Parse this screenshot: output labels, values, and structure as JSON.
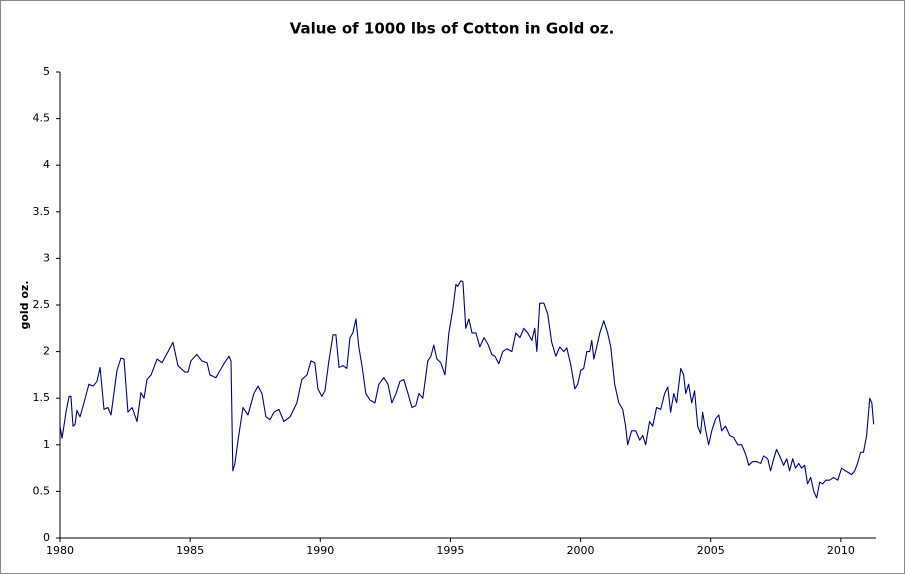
{
  "chart_data": {
    "type": "line",
    "title": "Value of 1000 lbs of Cotton in Gold oz.",
    "y_label": "gold oz.",
    "x": [
      1980.0,
      1980.08,
      1980.23,
      1980.35,
      1980.42,
      1980.5,
      1980.58,
      1980.65,
      1980.77,
      1980.92,
      1981.11,
      1981.27,
      1981.42,
      1981.54,
      1981.69,
      1981.84,
      1981.96,
      1982.07,
      1982.19,
      1982.34,
      1982.46,
      1982.61,
      1982.77,
      1982.96,
      1983.11,
      1983.23,
      1983.34,
      1983.5,
      1983.73,
      1983.92,
      1984.15,
      1984.34,
      1984.53,
      1984.8,
      1984.92,
      1985.03,
      1985.26,
      1985.45,
      1985.65,
      1985.76,
      1985.99,
      1986.11,
      1986.3,
      1986.49,
      1986.57,
      1986.64,
      1986.72,
      1986.84,
      1987.03,
      1987.22,
      1987.45,
      1987.61,
      1987.76,
      1987.91,
      1988.07,
      1988.22,
      1988.41,
      1988.6,
      1988.84,
      1989.1,
      1989.29,
      1989.49,
      1989.64,
      1989.79,
      1989.91,
      1990.06,
      1990.18,
      1990.33,
      1990.49,
      1990.6,
      1990.72,
      1990.87,
      1991.02,
      1991.14,
      1991.25,
      1991.37,
      1991.48,
      1991.6,
      1991.75,
      1991.91,
      1992.1,
      1992.25,
      1992.44,
      1992.6,
      1992.75,
      1992.91,
      1993.06,
      1993.21,
      1993.37,
      1993.52,
      1993.67,
      1993.79,
      1993.94,
      1994.13,
      1994.25,
      1994.36,
      1994.48,
      1994.63,
      1994.79,
      1994.94,
      1995.09,
      1995.21,
      1995.28,
      1995.4,
      1995.48,
      1995.59,
      1995.71,
      1995.83,
      1995.98,
      1996.13,
      1996.29,
      1996.44,
      1996.59,
      1996.71,
      1996.86,
      1997.01,
      1997.17,
      1997.36,
      1997.51,
      1997.67,
      1997.82,
      1997.97,
      1998.13,
      1998.24,
      1998.32,
      1998.43,
      1998.59,
      1998.74,
      1998.89,
      1999.05,
      1999.2,
      1999.36,
      1999.47,
      1999.63,
      1999.78,
      1999.89,
      2000.01,
      2000.12,
      2000.24,
      2000.35,
      2000.43,
      2000.51,
      2000.62,
      2000.74,
      2000.89,
      2001.04,
      2001.16,
      2001.31,
      2001.47,
      2001.62,
      2001.73,
      2001.81,
      2001.96,
      2002.12,
      2002.27,
      2002.39,
      2002.5,
      2002.65,
      2002.77,
      2002.92,
      2003.08,
      2003.23,
      2003.35,
      2003.46,
      2003.58,
      2003.69,
      2003.85,
      2003.96,
      2004.04,
      2004.15,
      2004.27,
      2004.38,
      2004.5,
      2004.61,
      2004.69,
      2004.81,
      2004.92,
      2005.04,
      2005.19,
      2005.31,
      2005.42,
      2005.57,
      2005.73,
      2005.88,
      2006.04,
      2006.19,
      2006.34,
      2006.46,
      2006.61,
      2006.77,
      2006.92,
      2007.03,
      2007.19,
      2007.3,
      2007.42,
      2007.53,
      2007.65,
      2007.8,
      2007.92,
      2008.03,
      2008.15,
      2008.26,
      2008.38,
      2008.49,
      2008.61,
      2008.72,
      2008.84,
      2008.96,
      2009.07,
      2009.19,
      2009.3,
      2009.42,
      2009.57,
      2009.72,
      2009.88,
      2010.03,
      2010.18,
      2010.3,
      2010.41,
      2010.53,
      2010.64,
      2010.76,
      2010.87,
      2010.99,
      2011.11,
      2011.19,
      2011.26
    ],
    "series": [
      {
        "name": "Cotton in gold oz.",
        "color": "#000080",
        "values": [
          1.2,
          1.07,
          1.35,
          1.52,
          1.52,
          1.2,
          1.22,
          1.37,
          1.3,
          1.45,
          1.65,
          1.63,
          1.68,
          1.83,
          1.38,
          1.4,
          1.32,
          1.55,
          1.8,
          1.93,
          1.92,
          1.35,
          1.4,
          1.25,
          1.56,
          1.5,
          1.7,
          1.75,
          1.92,
          1.88,
          2.0,
          2.1,
          1.85,
          1.78,
          1.78,
          1.9,
          1.97,
          1.9,
          1.88,
          1.75,
          1.72,
          1.78,
          1.87,
          1.95,
          1.9,
          0.72,
          0.8,
          1.05,
          1.4,
          1.32,
          1.55,
          1.63,
          1.55,
          1.3,
          1.27,
          1.35,
          1.38,
          1.25,
          1.3,
          1.45,
          1.7,
          1.75,
          1.9,
          1.88,
          1.6,
          1.52,
          1.58,
          1.9,
          2.18,
          2.18,
          1.83,
          1.85,
          1.82,
          2.15,
          2.2,
          2.35,
          2.05,
          1.85,
          1.55,
          1.48,
          1.45,
          1.65,
          1.72,
          1.65,
          1.45,
          1.55,
          1.68,
          1.7,
          1.55,
          1.4,
          1.42,
          1.55,
          1.5,
          1.9,
          1.95,
          2.07,
          1.92,
          1.88,
          1.75,
          2.2,
          2.45,
          2.72,
          2.7,
          2.76,
          2.75,
          2.25,
          2.35,
          2.2,
          2.2,
          2.05,
          2.15,
          2.08,
          1.97,
          1.95,
          1.87,
          2.0,
          2.03,
          2.0,
          2.2,
          2.15,
          2.25,
          2.2,
          2.12,
          2.25,
          2.0,
          2.52,
          2.52,
          2.4,
          2.1,
          1.95,
          2.05,
          2.0,
          2.04,
          1.85,
          1.6,
          1.65,
          1.8,
          1.82,
          2.0,
          2.0,
          2.12,
          1.92,
          2.05,
          2.2,
          2.33,
          2.2,
          2.05,
          1.65,
          1.45,
          1.38,
          1.2,
          1.0,
          1.15,
          1.15,
          1.05,
          1.1,
          1.0,
          1.25,
          1.2,
          1.4,
          1.38,
          1.55,
          1.62,
          1.35,
          1.55,
          1.45,
          1.82,
          1.75,
          1.55,
          1.65,
          1.45,
          1.58,
          1.2,
          1.12,
          1.35,
          1.15,
          1.0,
          1.15,
          1.28,
          1.32,
          1.15,
          1.2,
          1.1,
          1.08,
          1.0,
          1.0,
          0.9,
          0.78,
          0.82,
          0.82,
          0.8,
          0.88,
          0.85,
          0.72,
          0.85,
          0.95,
          0.88,
          0.78,
          0.85,
          0.72,
          0.85,
          0.75,
          0.8,
          0.75,
          0.78,
          0.58,
          0.65,
          0.5,
          0.43,
          0.6,
          0.58,
          0.62,
          0.62,
          0.65,
          0.62,
          0.75,
          0.72,
          0.7,
          0.68,
          0.72,
          0.8,
          0.92,
          0.92,
          1.1,
          1.5,
          1.45,
          1.22
        ]
      }
    ],
    "xlim": [
      1980,
      2011.35
    ],
    "xticks": [
      1980,
      1985,
      1990,
      1995,
      2000,
      2005,
      2010
    ],
    "ylim": [
      0,
      5
    ],
    "yticks": [
      0,
      0.5,
      1,
      1.5,
      2,
      2.5,
      3,
      3.5,
      4,
      4.5,
      5
    ],
    "grid": false
  }
}
